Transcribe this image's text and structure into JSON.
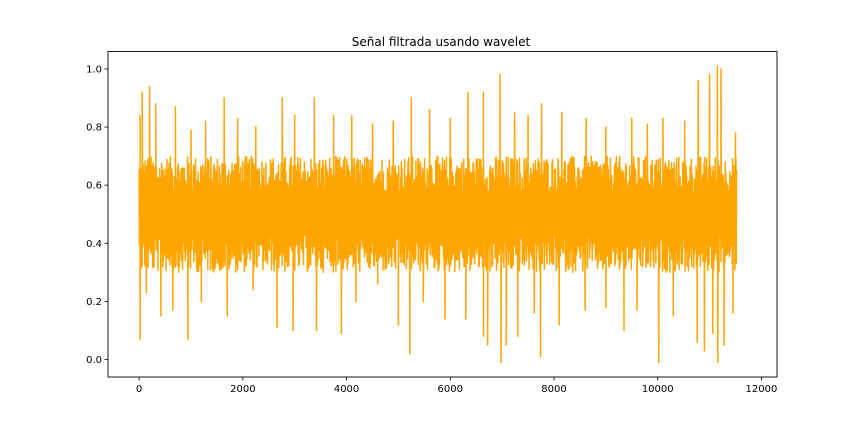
{
  "chart_data": {
    "type": "line",
    "title": "Señal filtrada usando wavelet",
    "xlabel": "",
    "ylabel": "",
    "xlim": [
      -600,
      12300
    ],
    "ylim": [
      -0.06,
      1.06
    ],
    "xticks": [
      0,
      2000,
      4000,
      6000,
      8000,
      10000,
      12000
    ],
    "xtick_labels": [
      "0",
      "2000",
      "4000",
      "6000",
      "8000",
      "10000",
      "12000"
    ],
    "yticks": [
      0.0,
      0.2,
      0.4,
      0.6,
      0.8,
      1.0
    ],
    "ytick_labels": [
      "0.0",
      "0.2",
      "0.4",
      "0.6",
      "0.8",
      "1.0"
    ],
    "grid": false,
    "legend": "none",
    "series": [
      {
        "color": "#FFA500",
        "x_range": [
          0,
          11520
        ],
        "typical_band": [
          0.3,
          0.7
        ],
        "peaks": [
          [
            20,
            0.84
          ],
          [
            60,
            0.92
          ],
          [
            200,
            0.94
          ],
          [
            320,
            0.88
          ],
          [
            700,
            0.87
          ],
          [
            1000,
            0.79
          ],
          [
            1280,
            0.82
          ],
          [
            1640,
            0.9
          ],
          [
            1900,
            0.83
          ],
          [
            2250,
            0.8
          ],
          [
            2760,
            0.9
          ],
          [
            3000,
            0.84
          ],
          [
            3380,
            0.9
          ],
          [
            3750,
            0.84
          ],
          [
            4100,
            0.84
          ],
          [
            4500,
            0.81
          ],
          [
            4900,
            0.82
          ],
          [
            5250,
            0.9
          ],
          [
            5600,
            0.86
          ],
          [
            6000,
            0.83
          ],
          [
            6340,
            0.92
          ],
          [
            6640,
            0.92
          ],
          [
            6960,
            0.98
          ],
          [
            7240,
            0.85
          ],
          [
            7500,
            0.84
          ],
          [
            7760,
            0.88
          ],
          [
            8150,
            0.85
          ],
          [
            8620,
            0.83
          ],
          [
            9000,
            0.8
          ],
          [
            9500,
            0.83
          ],
          [
            9800,
            0.81
          ],
          [
            10100,
            0.83
          ],
          [
            10520,
            0.82
          ],
          [
            10780,
            0.96
          ],
          [
            11000,
            0.98
          ],
          [
            11150,
            1.01
          ],
          [
            11220,
            1.0
          ],
          [
            11500,
            0.78
          ]
        ],
        "troughs": [
          [
            20,
            0.07
          ],
          [
            140,
            0.23
          ],
          [
            420,
            0.15
          ],
          [
            650,
            0.17
          ],
          [
            940,
            0.07
          ],
          [
            1200,
            0.2
          ],
          [
            1700,
            0.15
          ],
          [
            2200,
            0.24
          ],
          [
            2660,
            0.11
          ],
          [
            2970,
            0.1
          ],
          [
            3420,
            0.1
          ],
          [
            3900,
            0.09
          ],
          [
            4180,
            0.2
          ],
          [
            4600,
            0.26
          ],
          [
            5000,
            0.12
          ],
          [
            5220,
            0.02
          ],
          [
            5480,
            0.2
          ],
          [
            5900,
            0.14
          ],
          [
            6300,
            0.14
          ],
          [
            6640,
            0.08
          ],
          [
            6720,
            0.05
          ],
          [
            6980,
            -0.01
          ],
          [
            7080,
            0.05
          ],
          [
            7300,
            0.08
          ],
          [
            7620,
            0.16
          ],
          [
            7740,
            0.01
          ],
          [
            8100,
            0.12
          ],
          [
            8600,
            0.17
          ],
          [
            9000,
            0.18
          ],
          [
            9350,
            0.1
          ],
          [
            9600,
            0.17
          ],
          [
            10020,
            -0.01
          ],
          [
            10300,
            0.15
          ],
          [
            10760,
            0.06
          ],
          [
            10900,
            0.03
          ],
          [
            11060,
            0.09
          ],
          [
            11160,
            -0.01
          ],
          [
            11280,
            0.05
          ],
          [
            11450,
            0.16
          ]
        ]
      }
    ]
  }
}
